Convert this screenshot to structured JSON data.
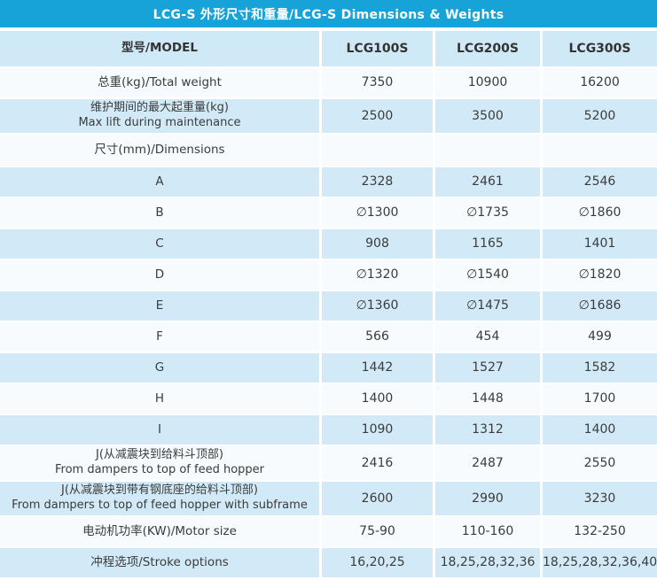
{
  "title": "LCG-S 外形尺寸和重量/LCG-S Dimensions & Weights",
  "colors": {
    "title_band": "#17a3d8",
    "title_text": "#ffffff",
    "header_row_bg": "#cfe9f7",
    "row_blue_bg": "#d2eaf7",
    "row_white_bg": "#f7fbfd",
    "text": "#3b3b3b"
  },
  "table": {
    "header": {
      "model_label": "型号/MODEL",
      "columns": [
        "LCG100S",
        "LCG200S",
        "LCG300S"
      ]
    },
    "rows": [
      {
        "label": "总重(kg)/Total weight",
        "values": [
          "7350",
          "10900",
          "16200"
        ]
      },
      {
        "label": "维护期间的最大起重量(kg)\nMax lift during maintenance",
        "values": [
          "2500",
          "3500",
          "5200"
        ]
      },
      {
        "label": "尺寸(mm)/Dimensions",
        "values": [
          "",
          "",
          ""
        ]
      },
      {
        "label": "A",
        "values": [
          "2328",
          "2461",
          "2546"
        ]
      },
      {
        "label": "B",
        "values": [
          "∅1300",
          "∅1735",
          "∅1860"
        ]
      },
      {
        "label": "C",
        "values": [
          "908",
          "1165",
          "1401"
        ]
      },
      {
        "label": "D",
        "values": [
          "∅1320",
          "∅1540",
          "∅1820"
        ]
      },
      {
        "label": "E",
        "values": [
          "∅1360",
          "∅1475",
          "∅1686"
        ]
      },
      {
        "label": "F",
        "values": [
          "566",
          "454",
          "499"
        ]
      },
      {
        "label": "G",
        "values": [
          "1442",
          "1527",
          "1582"
        ]
      },
      {
        "label": "H",
        "values": [
          "1400",
          "1448",
          "1700"
        ]
      },
      {
        "label": "I",
        "values": [
          "1090",
          "1312",
          "1400"
        ]
      },
      {
        "label": "J(从减震块到给料斗顶部)\nFrom dampers to top of feed hopper",
        "values": [
          "2416",
          "2487",
          "2550"
        ]
      },
      {
        "label": "J(从减震块到带有钢底座的给料斗顶部)\nFrom dampers to top of feed hopper with subframe",
        "values": [
          "2600",
          "2990",
          "3230"
        ]
      },
      {
        "label": "电动机功率(KW)/Motor size",
        "values": [
          "75-90",
          "110-160",
          "132-250"
        ]
      },
      {
        "label": "冲程选项/Stroke options",
        "values": [
          "16,20,25",
          "18,25,28,32,36",
          "18,25,28,32,36,40"
        ]
      }
    ]
  }
}
